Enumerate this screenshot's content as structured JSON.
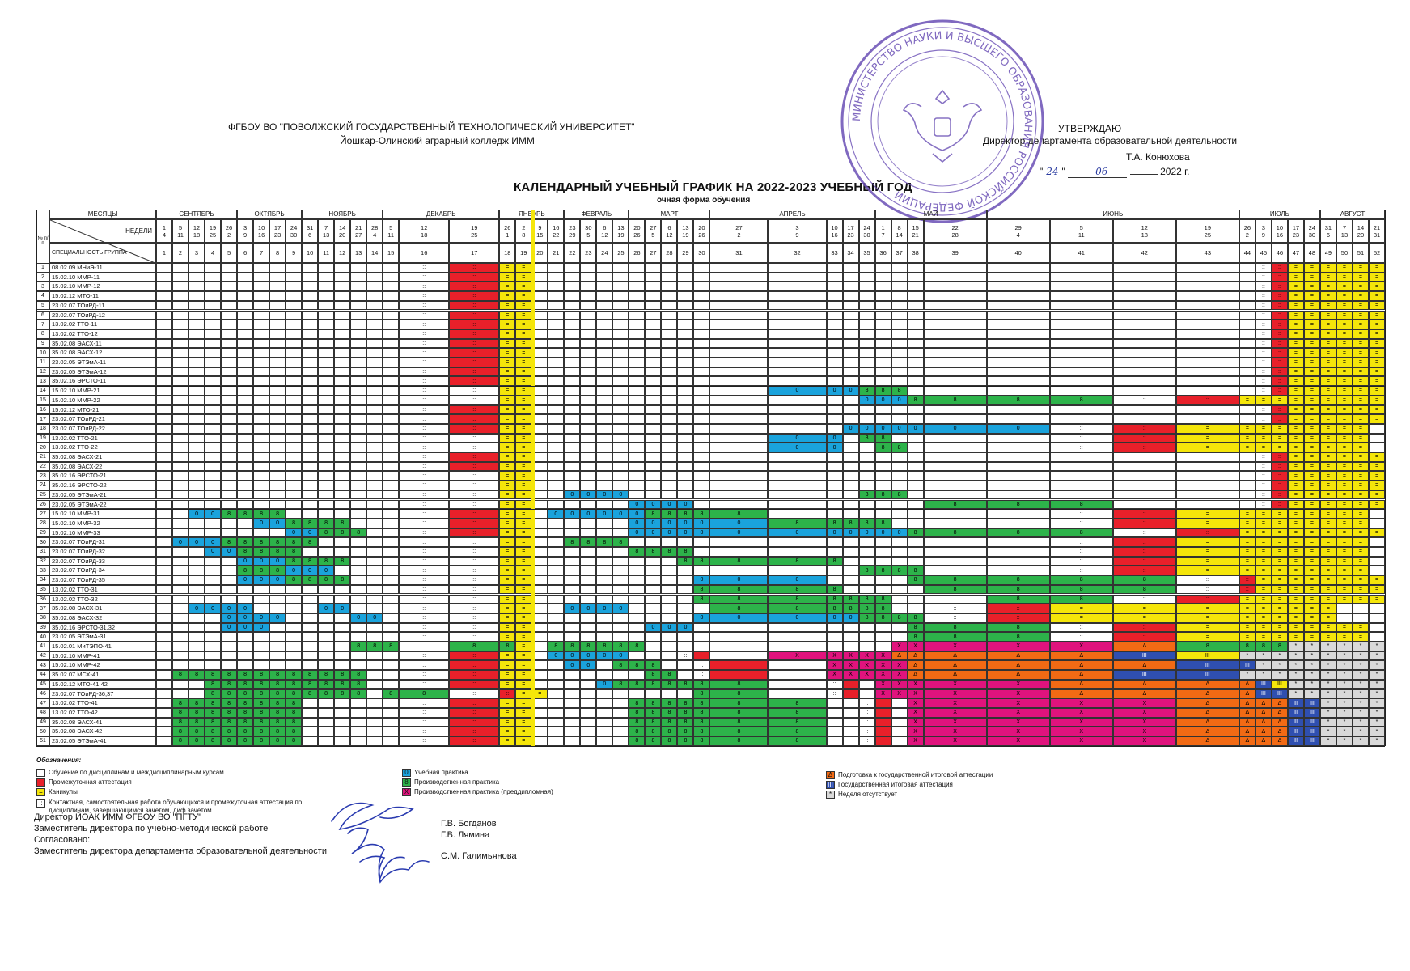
{
  "header": {
    "org_line1": "ФГБОУ ВО \"ПОВОЛЖСКИЙ  ГОСУДАРСТВЕННЫЙ ТЕХНОЛОГИЧЕСКИЙ УНИВЕРСИТЕТ\"",
    "org_line2": "Йошкар-Олинский аграрный колледж ИММ",
    "approve_title": "УТВЕРЖДАЮ",
    "approve_role": "Директор департамента образовательной деятельности",
    "approve_name": "Т.А. Конюхова",
    "approve_date_prefix": "\"",
    "approve_date_day": "24",
    "approve_date_sep": "\"",
    "approve_date_month": "06",
    "approve_date_year": "2022 г.",
    "title": "КАЛЕНДАРНЫЙ УЧЕБНЫЙ ГРАФИК НА 2022-2023 УЧЕБНЫЙ ГОД",
    "subtitle": "очная форма обучения"
  },
  "table": {
    "col_num_label": "№ п/п",
    "col_months_label": "МЕСЯЦЫ",
    "col_weeks_label": "НЕДЕЛИ",
    "col_spec_label": "СПЕЦИАЛЬНОСТЬ ГРУППА",
    "months": [
      "СЕНТЯБРЬ",
      "ОКТЯБРЬ",
      "НОЯБРЬ",
      "ДЕКАБРЬ",
      "ЯНВАРЬ",
      "ФЕВРАЛЬ",
      "МАРТ",
      "АПРЕЛЬ",
      "МАЙ",
      "ИЮНЬ",
      "ИЮЛЬ",
      "АВГУСТ"
    ],
    "week_dates": [
      [
        "1",
        "4"
      ],
      [
        "5",
        "11"
      ],
      [
        "12",
        "18"
      ],
      [
        "19",
        "25"
      ],
      [
        "26",
        "2"
      ],
      [
        "3",
        "9"
      ],
      [
        "10",
        "16"
      ],
      [
        "17",
        "23"
      ],
      [
        "24",
        "30"
      ],
      [
        "31",
        "6"
      ],
      [
        "7",
        "13"
      ],
      [
        "14",
        "20"
      ],
      [
        "21",
        "27"
      ],
      [
        "28",
        "4"
      ],
      [
        "5",
        "11"
      ],
      [
        "12",
        "18"
      ],
      [
        "19",
        "25"
      ],
      [
        "26",
        "1"
      ],
      [
        "2",
        "8"
      ],
      [
        "9",
        "15"
      ],
      [
        "16",
        "22"
      ],
      [
        "23",
        "29"
      ],
      [
        "30",
        "5"
      ],
      [
        "6",
        "12"
      ],
      [
        "13",
        "19"
      ],
      [
        "20",
        "26"
      ],
      [
        "27",
        "5"
      ],
      [
        "6",
        "12"
      ],
      [
        "13",
        "19"
      ],
      [
        "20",
        "26"
      ],
      [
        "27",
        "2"
      ],
      [
        "3",
        "9"
      ],
      [
        "10",
        "16"
      ],
      [
        "17",
        "23"
      ],
      [
        "24",
        "30"
      ],
      [
        "1",
        "7"
      ],
      [
        "8",
        "14"
      ],
      [
        "15",
        "21"
      ],
      [
        "22",
        "28"
      ],
      [
        "29",
        "4"
      ],
      [
        "5",
        "11"
      ],
      [
        "12",
        "18"
      ],
      [
        "19",
        "25"
      ],
      [
        "26",
        "2"
      ],
      [
        "3",
        "9"
      ],
      [
        "10",
        "16"
      ],
      [
        "17",
        "23"
      ],
      [
        "24",
        "30"
      ],
      [
        "31",
        "6"
      ],
      [
        "7",
        "13"
      ],
      [
        "14",
        "20"
      ],
      [
        "21",
        "31"
      ]
    ],
    "week_numbers": [
      "1",
      "2",
      "3",
      "4",
      "5",
      "6",
      "7",
      "8",
      "9",
      "10",
      "11",
      "12",
      "13",
      "14",
      "15",
      "16",
      "17",
      "18",
      "19",
      "20",
      "21",
      "22",
      "23",
      "24",
      "25",
      "26",
      "27",
      "28",
      "29",
      "30",
      "31",
      "32",
      "33",
      "34",
      "35",
      "36",
      "37",
      "38",
      "39",
      "40",
      "41",
      "42",
      "43",
      "44",
      "45",
      "46",
      "47",
      "48",
      "49",
      "50",
      "51",
      "52"
    ],
    "groups": [
      {
        "n": "1",
        "name": "08.02.09 МНиЭ-11",
        "cells": "......................FF......................R...eeeeeeeeeeeeeeeeeeeeeeeeeeeeeeeeeeeeeeeeeeeeeeeeeeeeeeeeeeeeeeeeeeeeeeeeeeeeeeeeeeeeeeeeeeeeeeeeeeeeeeeeeeeeeee"
      },
      {
        "n": "2",
        "name": "15.02.10 ММР-11"
      },
      {
        "n": "3",
        "name": "15.02.10 ММР-12"
      },
      {
        "n": "4",
        "name": "15.02.12 МТО-11"
      },
      {
        "n": "5",
        "name": "23.02.07 ТОиРД-11"
      },
      {
        "n": "6",
        "name": "23.02.07 ТОиРД-12"
      },
      {
        "n": "7",
        "name": "13.02.02 ТТО-11"
      },
      {
        "n": "8",
        "name": "13.02.02 ТТО-12"
      },
      {
        "n": "9",
        "name": "35.02.08 ЭАСХ-11"
      },
      {
        "n": "10",
        "name": "35.02.08 ЭАСХ-12"
      },
      {
        "n": "11",
        "name": "23.02.05 ЭТЭмА-11"
      },
      {
        "n": "12",
        "name": "23.02.05 ЭТЭмА-12"
      },
      {
        "n": "13",
        "name": "35.02.16 ЭРСТО-11"
      },
      {
        "n": "14",
        "name": "15.02.10 ММР-21"
      },
      {
        "n": "15",
        "name": "15.02.10 ММР-22"
      },
      {
        "n": "16",
        "name": "15.02.12 МТО-21"
      },
      {
        "n": "17",
        "name": "23.02.07 ТОиРД-21"
      },
      {
        "n": "18",
        "name": "23.02.07 ТОиРД-22"
      },
      {
        "n": "19",
        "name": "13.02.02 ТТО-21"
      },
      {
        "n": "20",
        "name": "13.02.02 ТТО-22"
      },
      {
        "n": "21",
        "name": "35.02.08 ЭАСХ-21"
      },
      {
        "n": "22",
        "name": "35.02.08 ЭАСХ-22"
      },
      {
        "n": "23",
        "name": "35.02.16 ЭРСТО-21"
      },
      {
        "n": "24",
        "name": "35.02.16 ЭРСТО-22"
      },
      {
        "n": "25",
        "name": "23.02.05 ЭТЭмА-21"
      },
      {
        "n": "26",
        "name": "23.02.05 ЭТЭмА-22"
      },
      {
        "n": "27",
        "name": "15.02.10 ММР-31"
      },
      {
        "n": "28",
        "name": "15.02.10 ММР-32"
      },
      {
        "n": "29",
        "name": "15.02.10 ММР-33"
      },
      {
        "n": "30",
        "name": "23.02.07 ТОиРД-31"
      },
      {
        "n": "31",
        "name": "23.02.07 ТОиРД-32"
      },
      {
        "n": "32",
        "name": "23.02.07 ТОиРД-33"
      },
      {
        "n": "33",
        "name": "23.02.07 ТОиРД-34"
      },
      {
        "n": "34",
        "name": "23.02.07 ТОиРД-35"
      },
      {
        "n": "35",
        "name": "13.02.02 ТТО-31"
      },
      {
        "n": "36",
        "name": "13.02.02 ТТО-32"
      },
      {
        "n": "37",
        "name": "35.02.08 ЭАСХ-31"
      },
      {
        "n": "38",
        "name": "35.02.08 ЭАСХ-32"
      },
      {
        "n": "39",
        "name": "35.02.16 ЭРСТО-31,32"
      },
      {
        "n": "40",
        "name": "23.02.05 ЭТЭмА-31"
      },
      {
        "n": "41",
        "name": "15.02.01 МиТЭПО-41"
      },
      {
        "n": "42",
        "name": "15.02.10 ММР-41"
      },
      {
        "n": "43",
        "name": "15.02.10 ММР-42"
      },
      {
        "n": "44",
        "name": "35.02.07 МСХ-41"
      },
      {
        "n": "45",
        "name": "15.02.12 МТО-41,42"
      },
      {
        "n": "46",
        "name": "23.02.07 ТОиРД-36,37"
      },
      {
        "n": "47",
        "name": "13.02.02 ТТО-41"
      },
      {
        "n": "48",
        "name": "13.02.02 ТТО-42"
      },
      {
        "n": "49",
        "name": "35.02.08 ЭАСХ-41"
      },
      {
        "n": "50",
        "name": "35.02.08 ЭАСХ-42"
      },
      {
        "n": "51",
        "name": "23.02.05 ЭТЭмА-41"
      }
    ]
  },
  "colors": {
    "study": "#ffffff",
    "attestation": "#e8202a",
    "holiday": "#f5e60a",
    "practice_study": "#1aa3dc",
    "practice_prod": "#2db34a",
    "practice_prediploma": "#e0137d",
    "gia_prep": "#f26a14",
    "gia": "#2f4fb0",
    "absent": "#d9d9d9",
    "grid": "#333333"
  },
  "legend": {
    "heading": "Обозначения:",
    "items_left": [
      {
        "code": "",
        "text": "Обучение по дисциплинам и междисциплинарным курсам"
      },
      {
        "code": "",
        "text": "Промежуточная аттестация"
      },
      {
        "code": "=",
        "text": "Каникулы"
      },
      {
        "code": "::",
        "text": "Контактная, самостоятельная работа обучающихся и промежуточная аттестация по дисциплинам, завершающимся зачетом, диф.зачетом"
      }
    ],
    "items_mid": [
      {
        "code": "0",
        "text": "Учебная практика"
      },
      {
        "code": "8",
        "text": "Производственная практика"
      },
      {
        "code": "X",
        "text": "Производственная практика (преддипломная)"
      }
    ],
    "items_right": [
      {
        "code": "Δ",
        "text": "Подготовка к государственной итоговой аттестации"
      },
      {
        "code": "III",
        "text": "Государственная итоговая аттестация"
      },
      {
        "code": "*",
        "text": "Неделя отсутствует"
      }
    ]
  },
  "signatures": {
    "line1": "Директор ЙОАК ИММ ФГБОУ ВО \"ПГТУ\"",
    "line2": "Заместитель директора по учебно-методической работе",
    "line3": "Согласовано:",
    "line4": "Заместитель директора департамента образовательной деятельности",
    "name1": "Г.В. Богданов",
    "name2": "Г.В. Лямина",
    "name3": "С.М. Галимьянова"
  },
  "stamp": {
    "ring_text": "МИНИСТЕРСТВО НАУКИ И ВЫСШЕГО ОБРАЗОВАНИЯ РОССИЙСКОЙ ФЕДЕРАЦИИ"
  }
}
